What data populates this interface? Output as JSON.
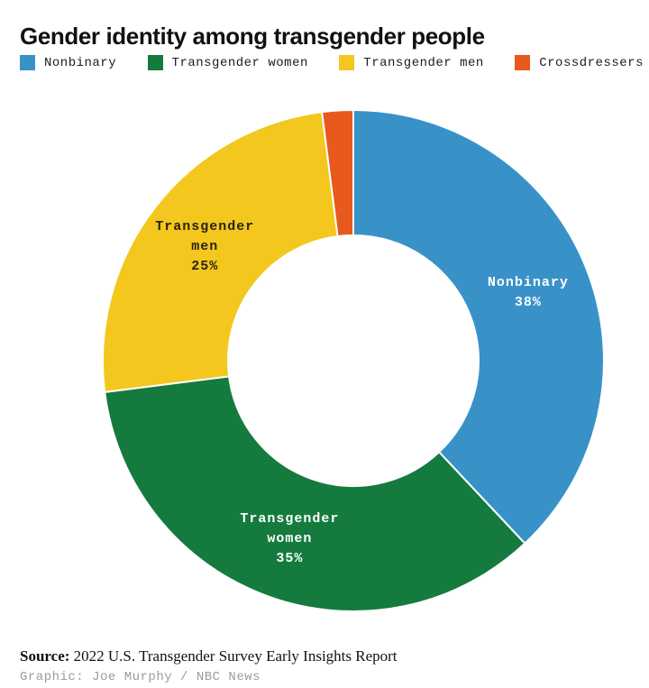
{
  "title": "Gender identity among transgender people",
  "chart_data": {
    "type": "pie",
    "subtype": "donut",
    "title": "Gender identity among transgender people",
    "categories": [
      "Nonbinary",
      "Transgender women",
      "Transgender men",
      "Crossdressers"
    ],
    "values": [
      38,
      35,
      25,
      2
    ],
    "unit": "%",
    "colors": [
      "#3892c8",
      "#157a3e",
      "#f3c71d",
      "#e8591d"
    ],
    "label_colors": [
      "#ffffff",
      "#ffffff",
      "#2b2213",
      null
    ],
    "labels_shown": [
      true,
      true,
      true,
      false
    ],
    "start_angle_deg": 0,
    "direction": "clockwise",
    "inner_radius_ratio": 0.5,
    "legend_position": "top",
    "slice_border_color": "#ffffff"
  },
  "source": {
    "prefix": "Source:",
    "text": " 2022 U.S. Transgender Survey Early Insights Report"
  },
  "credit": "Graphic: Joe Murphy / NBC News"
}
